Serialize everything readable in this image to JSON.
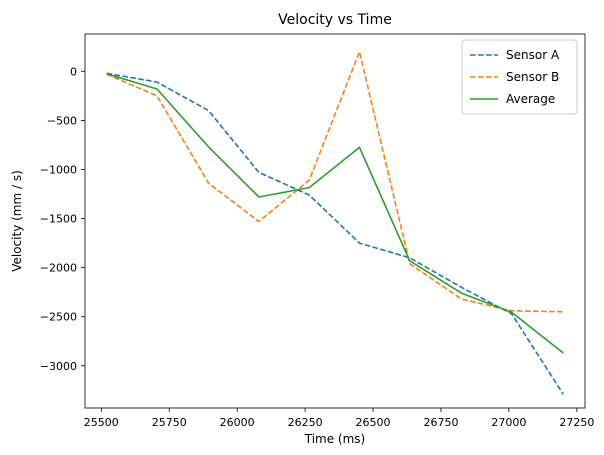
{
  "chart_data": {
    "type": "line",
    "title": "Velocity vs Time",
    "xlabel": "Time (ms)",
    "ylabel": "Velocity (mm / s)",
    "xlim": [
      25440,
      27280
    ],
    "ylim": [
      -3430,
      380
    ],
    "xticks": [
      25500,
      25750,
      26000,
      26250,
      26500,
      26750,
      27000,
      27250
    ],
    "yticks": [
      0,
      -500,
      -1000,
      -1500,
      -2000,
      -2500,
      -3000
    ],
    "grid": false,
    "legend_position": "top-right",
    "x": [
      25520,
      25705,
      25895,
      26080,
      26265,
      26450,
      26635,
      26825,
      27010,
      27200
    ],
    "series": [
      {
        "name": "Sensor A",
        "color": "#1f77b4",
        "dash": "dashed",
        "values": [
          -20,
          -110,
          -400,
          -1030,
          -1260,
          -1750,
          -1900,
          -2200,
          -2470,
          -3290
        ]
      },
      {
        "name": "Sensor B",
        "color": "#ff7f0e",
        "dash": "dashed",
        "values": [
          -30,
          -250,
          -1140,
          -1530,
          -1110,
          200,
          -1960,
          -2320,
          -2440,
          -2450
        ]
      },
      {
        "name": "Average",
        "color": "#2ca02c",
        "dash": "solid",
        "values": [
          -25,
          -180,
          -770,
          -1280,
          -1185,
          -775,
          -1930,
          -2260,
          -2455,
          -2870
        ]
      }
    ]
  }
}
